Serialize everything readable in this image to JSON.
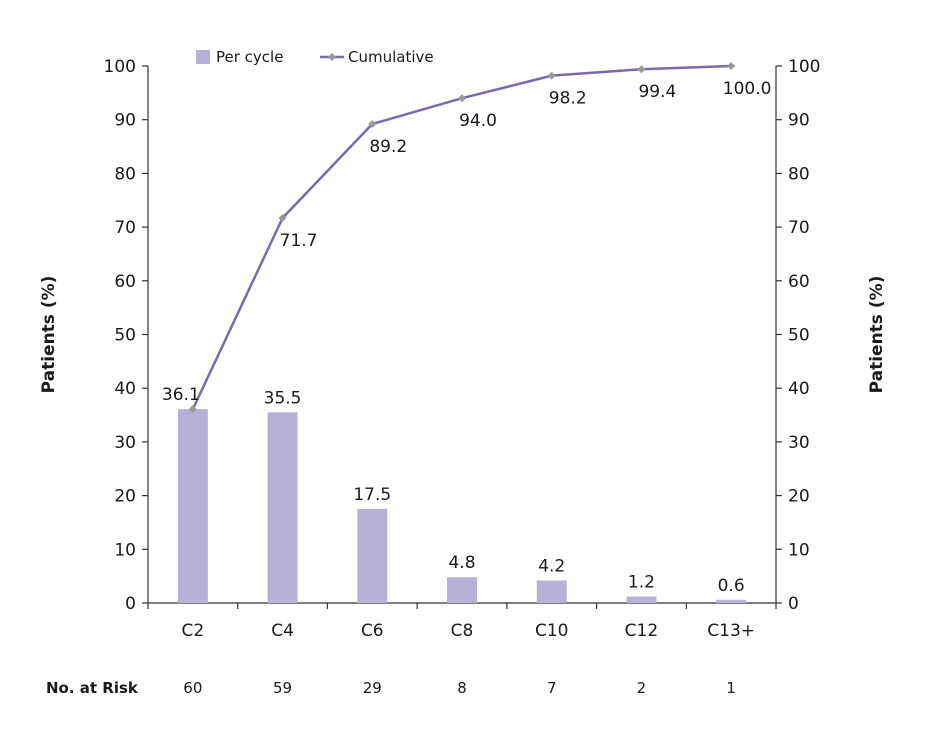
{
  "chart_data": {
    "type": "bar",
    "categories": [
      "C2",
      "C4",
      "C6",
      "C8",
      "C10",
      "C12",
      "C13+"
    ],
    "series": [
      {
        "name": "Per cycle",
        "type": "bar",
        "values": [
          36.1,
          35.5,
          17.5,
          4.8,
          4.2,
          1.2,
          0.6
        ],
        "labels": [
          "36.1",
          "35.5",
          "17.5",
          "4.8",
          "4.2",
          "1.2",
          "0.6"
        ],
        "color": "#b9b0d9"
      },
      {
        "name": "Cumulative",
        "type": "line",
        "values": [
          36.1,
          71.7,
          89.2,
          94.0,
          98.2,
          99.4,
          100.0
        ],
        "labels": [
          "",
          "71.7",
          "89.2",
          "94.0",
          "98.2",
          "99.4",
          "100.0"
        ],
        "color": "#7b68ad",
        "marker_color": "#999999"
      }
    ],
    "ylabel": "Patients (%)",
    "ylabel_right": "Patients (%)",
    "ylim": [
      0,
      100
    ],
    "yticks": [
      0,
      10,
      20,
      30,
      40,
      50,
      60,
      70,
      80,
      90,
      100
    ],
    "grid": false,
    "legend": "top"
  },
  "risk_table": {
    "title": "No. at Risk",
    "values": [
      "60",
      "59",
      "29",
      "8",
      "7",
      "2",
      "1"
    ]
  }
}
